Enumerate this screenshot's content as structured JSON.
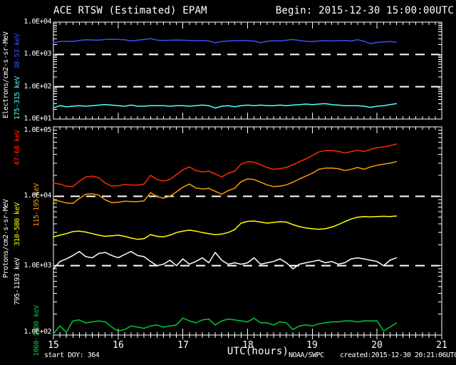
{
  "header": {
    "title": "ACE RTSW (Estimated) EPAM",
    "begin": "Begin: 2015-12-30 15:00:00UTC"
  },
  "footer": {
    "start_doy": "start DOY:  364",
    "xaxis_title": "UTC(hours)",
    "agency": "NOAA/SWPC",
    "created": "created:2015-12-30 20:21:06UTC"
  },
  "yticks_electrons": [
    "1.0E+04",
    "1.0E+03",
    "1.0E+02",
    "1.0E+01"
  ],
  "yticks_protons": [
    "1.0E+05",
    "1.0E+04",
    "1.0E+03",
    "1.0E+02"
  ],
  "xticks": [
    "15",
    "16",
    "17",
    "18",
    "19",
    "20",
    "21"
  ],
  "chart_data": [
    {
      "type": "line",
      "panel": "electrons",
      "title": "ACE RTSW (Estimated) EPAM",
      "ylabel": "Electrons/cm2-s-sr-MeV",
      "xlabel": "UTC(hours)",
      "yscale": "log",
      "ylim": [
        10,
        10000
      ],
      "xlim": [
        15,
        21
      ],
      "grid": "horizontal dashed at decades",
      "gridlines_at": [
        1000,
        100
      ],
      "x": [
        15,
        15.1,
        15.2,
        15.3,
        15.4,
        15.5,
        15.6,
        15.7,
        15.8,
        15.9,
        16,
        16.1,
        16.2,
        16.3,
        16.4,
        16.5,
        16.6,
        16.7,
        16.8,
        16.9,
        17,
        17.1,
        17.2,
        17.3,
        17.4,
        17.5,
        17.6,
        17.7,
        17.8,
        17.9,
        18,
        18.1,
        18.2,
        18.3,
        18.4,
        18.5,
        18.6,
        18.7,
        18.8,
        18.9,
        19,
        19.1,
        19.2,
        19.3,
        19.4,
        19.5,
        19.6,
        19.7,
        19.8,
        19.9,
        20,
        20.1,
        20.2,
        20.3
      ],
      "series": [
        {
          "name": "38-53 keV",
          "color": "#3a50f0",
          "values": [
            2300,
            2500,
            2550,
            2500,
            2700,
            2850,
            2800,
            2750,
            2900,
            2950,
            2900,
            2850,
            2600,
            2750,
            2900,
            3100,
            2750,
            2700,
            2750,
            2800,
            2750,
            2700,
            2650,
            2700,
            2600,
            2300,
            2500,
            2600,
            2650,
            2700,
            2650,
            2600,
            2300,
            2550,
            2650,
            2600,
            2750,
            2900,
            2700,
            2550,
            2500,
            2600,
            2650,
            2600,
            2650,
            2700,
            2600,
            2850,
            2550,
            2150,
            2350,
            2450,
            2500,
            2400
          ]
        },
        {
          "name": "175-315 keV",
          "color": "#50ffff",
          "values": [
            22,
            26,
            24,
            25,
            26,
            25,
            26,
            27,
            28,
            27,
            26,
            25,
            27,
            25,
            25,
            26,
            26,
            26,
            25,
            26,
            26,
            25,
            26,
            27,
            26,
            22,
            25,
            26,
            24,
            26,
            27,
            26,
            27,
            26,
            26,
            27,
            26,
            27,
            28,
            29,
            28,
            29,
            30,
            28,
            27,
            26,
            26,
            26,
            25,
            23,
            25,
            26,
            28,
            30
          ]
        }
      ]
    },
    {
      "type": "line",
      "panel": "protons",
      "ylabel": "Protons/cm2-s-sr-MeV",
      "xlabel": "UTC(hours)",
      "yscale": "log",
      "ylim": [
        100,
        100000
      ],
      "xlim": [
        15,
        21
      ],
      "grid": "horizontal dashed at decades",
      "gridlines_at": [
        10000,
        1000
      ],
      "x": [
        15,
        15.1,
        15.2,
        15.3,
        15.4,
        15.5,
        15.6,
        15.7,
        15.8,
        15.9,
        16,
        16.1,
        16.2,
        16.3,
        16.4,
        16.5,
        16.6,
        16.7,
        16.8,
        16.9,
        17,
        17.1,
        17.2,
        17.3,
        17.4,
        17.5,
        17.6,
        17.7,
        17.8,
        17.9,
        18,
        18.1,
        18.2,
        18.3,
        18.4,
        18.5,
        18.6,
        18.7,
        18.8,
        18.9,
        19,
        19.1,
        19.2,
        19.3,
        19.4,
        19.5,
        19.6,
        19.7,
        19.8,
        19.9,
        20,
        20.1,
        20.2,
        20.3
      ],
      "series": [
        {
          "name": "47-68 keV",
          "color": "#ff2a00",
          "values": [
            15500,
            15000,
            14000,
            13800,
            16500,
            19000,
            19500,
            18500,
            15500,
            14000,
            14200,
            14800,
            14500,
            14500,
            15000,
            20000,
            17500,
            16500,
            17500,
            20500,
            24000,
            26500,
            23500,
            22500,
            23000,
            21000,
            19000,
            21500,
            23000,
            29000,
            31500,
            31000,
            28500,
            26000,
            24500,
            25000,
            26000,
            28500,
            31500,
            34500,
            38500,
            43500,
            45500,
            45500,
            44500,
            42000,
            44000,
            46000,
            44000,
            47500,
            50000,
            51500,
            53500,
            56500
          ]
        },
        {
          "name": "115-195 keV",
          "color": "#ff9800",
          "values": [
            8800,
            8500,
            8000,
            7900,
            9300,
            10700,
            10900,
            10400,
            8900,
            8100,
            8200,
            8500,
            8400,
            8400,
            8600,
            11300,
            9900,
            9400,
            10000,
            11600,
            13500,
            15000,
            13200,
            12700,
            13000,
            11800,
            10700,
            12100,
            13000,
            16300,
            17800,
            17400,
            16000,
            14600,
            13800,
            14000,
            14600,
            16000,
            17800,
            19500,
            21500,
            24500,
            25500,
            25500,
            25000,
            23500,
            24500,
            26000,
            24500,
            26500,
            28000,
            29000,
            30000,
            31500
          ]
        },
        {
          "name": "310-580 keV",
          "color": "#ffff00",
          "values": [
            2600,
            2750,
            2900,
            3100,
            3150,
            3050,
            2900,
            2750,
            2650,
            2700,
            2750,
            2650,
            2500,
            2400,
            2450,
            2800,
            2650,
            2600,
            2750,
            3000,
            3150,
            3250,
            3150,
            3000,
            2900,
            2800,
            2850,
            3000,
            3300,
            4100,
            4350,
            4400,
            4250,
            4100,
            4200,
            4300,
            4250,
            3900,
            3650,
            3500,
            3400,
            3350,
            3400,
            3600,
            3900,
            4300,
            4700,
            5000,
            5100,
            5050,
            5100,
            5150,
            5100,
            5200
          ]
        },
        {
          "name": "795-1193 keV",
          "color": "#ffffff",
          "values": [
            900,
            1150,
            1250,
            1400,
            1600,
            1350,
            1300,
            1500,
            1550,
            1400,
            1300,
            1450,
            1600,
            1400,
            1350,
            1150,
            1000,
            1050,
            1200,
            1000,
            1250,
            1050,
            1150,
            1300,
            1100,
            1550,
            1200,
            1050,
            1100,
            1050,
            1100,
            1300,
            1050,
            1100,
            1150,
            1250,
            1100,
            900,
            1050,
            1100,
            1150,
            1200,
            1100,
            1150,
            1050,
            1100,
            1250,
            1300,
            1250,
            1200,
            1150,
            1000,
            1200,
            1300
          ]
        },
        {
          "name": "1060-1900 keV",
          "color": "#00c832",
          "values": [
            105,
            135,
            110,
            160,
            165,
            150,
            155,
            160,
            155,
            130,
            115,
            120,
            135,
            130,
            125,
            135,
            140,
            130,
            135,
            140,
            175,
            160,
            150,
            165,
            170,
            140,
            160,
            170,
            165,
            160,
            155,
            175,
            150,
            150,
            140,
            155,
            150,
            120,
            135,
            140,
            135,
            145,
            150,
            155,
            155,
            160,
            160,
            155,
            160,
            160,
            160,
            115,
            130,
            150
          ]
        }
      ]
    }
  ]
}
